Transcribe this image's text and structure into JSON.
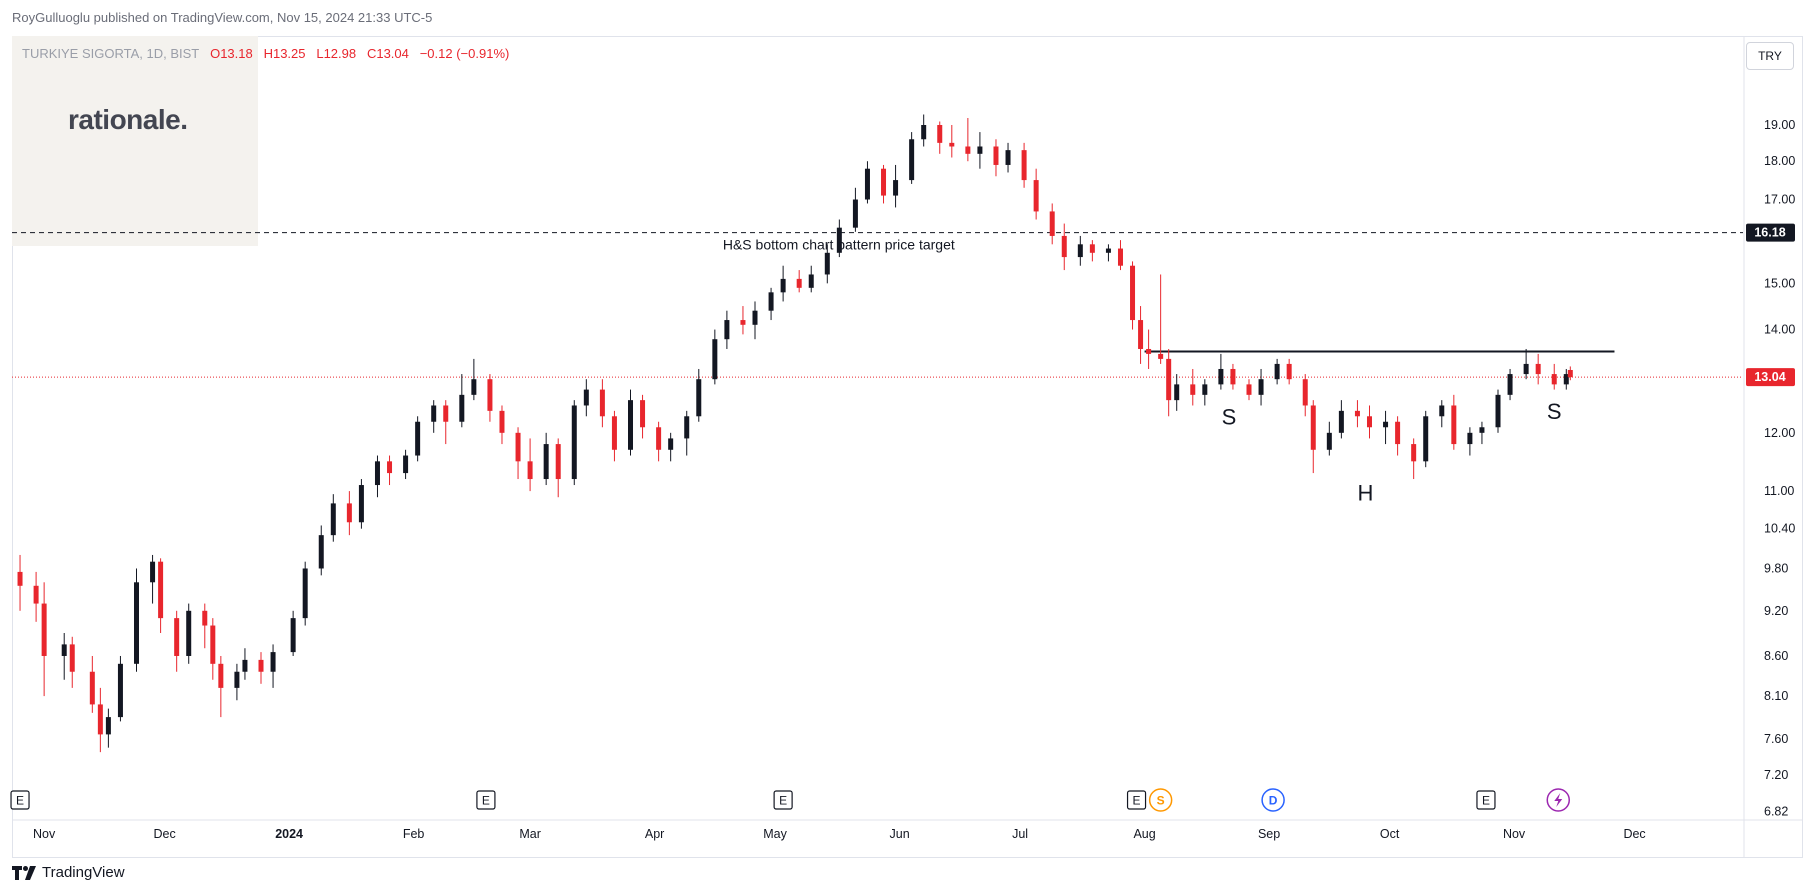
{
  "header": {
    "published": "RoyGulluoglu published on TradingView.com, Nov 15, 2024 21:33 UTC-5"
  },
  "legend": {
    "symbol": "TURKIYE SIGORTA, 1D, BIST",
    "open": "O13.18",
    "high": "H13.25",
    "low": "L12.98",
    "close": "C13.04",
    "change": "−0.12 (−0.91%)"
  },
  "watermark": "rationale.",
  "currency_button": "TRY",
  "footer": {
    "brand": "TradingView"
  },
  "colors": {
    "up": "#131722",
    "down": "#e8262d",
    "price_line": "#e8262d",
    "target_line": "#131722",
    "dividend": "#2962ff",
    "split": "#ff9800",
    "pulse": "#9c27b0"
  },
  "chart_data": {
    "type": "candlestick",
    "scale": "log",
    "y_ticks": [
      6.82,
      7.2,
      7.6,
      8.1,
      8.6,
      9.2,
      9.8,
      10.4,
      11.0,
      12.0,
      13.0,
      14.0,
      15.0,
      16.0,
      17.0,
      18.0,
      19.0
    ],
    "y_tick_labels": [
      "6.82",
      "7.20",
      "7.60",
      "8.10",
      "8.60",
      "9.20",
      "9.80",
      "10.40",
      "11.00",
      "12.00",
      "",
      "14.00",
      "15.00",
      "",
      "17.00",
      "18.00",
      "19.00"
    ],
    "x_labels": [
      {
        "label": "Nov",
        "date": "2023-11-01",
        "bold": false
      },
      {
        "label": "Dec",
        "date": "2023-12-01",
        "bold": false
      },
      {
        "label": "2024",
        "date": "2024-01-01",
        "bold": true
      },
      {
        "label": "Feb",
        "date": "2024-02-01",
        "bold": false
      },
      {
        "label": "Mar",
        "date": "2024-03-01",
        "bold": false
      },
      {
        "label": "Apr",
        "date": "2024-04-01",
        "bold": false
      },
      {
        "label": "May",
        "date": "2024-05-01",
        "bold": false
      },
      {
        "label": "Jun",
        "date": "2024-06-01",
        "bold": false
      },
      {
        "label": "Jul",
        "date": "2024-07-01",
        "bold": false
      },
      {
        "label": "Aug",
        "date": "2024-08-01",
        "bold": false
      },
      {
        "label": "Sep",
        "date": "2024-09-01",
        "bold": false
      },
      {
        "label": "Oct",
        "date": "2024-10-01",
        "bold": false
      },
      {
        "label": "Nov",
        "date": "2024-11-01",
        "bold": false
      },
      {
        "label": "Dec",
        "date": "2024-12-01",
        "bold": false
      }
    ],
    "last_price": {
      "value": 13.04,
      "label": "13.04"
    },
    "target_price": {
      "value": 16.18,
      "label": "16.18"
    },
    "target_text": "H&S bottom chart pattern price target",
    "neckline": {
      "value": 13.55,
      "from": "2024-08-01",
      "to": "2024-11-26"
    },
    "pattern_labels": [
      {
        "text": "S",
        "date": "2024-08-22",
        "value": 12.15
      },
      {
        "text": "H",
        "date": "2024-09-25",
        "value": 10.85
      },
      {
        "text": "S",
        "date": "2024-11-11",
        "value": 12.25
      }
    ],
    "events": [
      {
        "type": "E",
        "date": "2023-10-26"
      },
      {
        "type": "E",
        "date": "2024-02-19"
      },
      {
        "type": "E",
        "date": "2024-05-03"
      },
      {
        "type": "E",
        "date": "2024-07-30"
      },
      {
        "type": "S",
        "date": "2024-08-05"
      },
      {
        "type": "D",
        "date": "2024-09-02"
      },
      {
        "type": "E",
        "date": "2024-10-25"
      },
      {
        "type": "pulse",
        "date": "2024-11-12"
      }
    ],
    "series": [
      {
        "date": "2023-10-26",
        "open": 9.75,
        "high": 10.0,
        "low": 9.2,
        "close": 9.55
      },
      {
        "date": "2023-10-30",
        "open": 9.55,
        "high": 9.75,
        "low": 9.05,
        "close": 9.3
      },
      {
        "date": "2023-11-01",
        "open": 9.3,
        "high": 9.6,
        "low": 8.1,
        "close": 8.6
      },
      {
        "date": "2023-11-06",
        "open": 8.6,
        "high": 8.9,
        "low": 8.3,
        "close": 8.75
      },
      {
        "date": "2023-11-08",
        "open": 8.75,
        "high": 8.85,
        "low": 8.2,
        "close": 8.4
      },
      {
        "date": "2023-11-13",
        "open": 8.4,
        "high": 8.6,
        "low": 7.9,
        "close": 8.0
      },
      {
        "date": "2023-11-15",
        "open": 8.0,
        "high": 8.2,
        "low": 7.45,
        "close": 7.65
      },
      {
        "date": "2023-11-17",
        "open": 7.65,
        "high": 7.95,
        "low": 7.5,
        "close": 7.85
      },
      {
        "date": "2023-11-20",
        "open": 7.85,
        "high": 8.6,
        "low": 7.8,
        "close": 8.5
      },
      {
        "date": "2023-11-24",
        "open": 8.5,
        "high": 9.8,
        "low": 8.4,
        "close": 9.6
      },
      {
        "date": "2023-11-28",
        "open": 9.6,
        "high": 10.0,
        "low": 9.3,
        "close": 9.9
      },
      {
        "date": "2023-11-30",
        "open": 9.9,
        "high": 9.95,
        "low": 8.9,
        "close": 9.1
      },
      {
        "date": "2023-12-04",
        "open": 9.1,
        "high": 9.2,
        "low": 8.4,
        "close": 8.6
      },
      {
        "date": "2023-12-07",
        "open": 8.6,
        "high": 9.3,
        "low": 8.5,
        "close": 9.2
      },
      {
        "date": "2023-12-11",
        "open": 9.2,
        "high": 9.3,
        "low": 8.7,
        "close": 9.0
      },
      {
        "date": "2023-12-13",
        "open": 9.0,
        "high": 9.1,
        "low": 8.3,
        "close": 8.5
      },
      {
        "date": "2023-12-15",
        "open": 8.5,
        "high": 8.6,
        "low": 7.85,
        "close": 8.2
      },
      {
        "date": "2023-12-19",
        "open": 8.2,
        "high": 8.5,
        "low": 8.05,
        "close": 8.4
      },
      {
        "date": "2023-12-21",
        "open": 8.4,
        "high": 8.7,
        "low": 8.3,
        "close": 8.55
      },
      {
        "date": "2023-12-25",
        "open": 8.55,
        "high": 8.65,
        "low": 8.25,
        "close": 8.4
      },
      {
        "date": "2023-12-28",
        "open": 8.4,
        "high": 8.75,
        "low": 8.2,
        "close": 8.65
      },
      {
        "date": "2024-01-02",
        "open": 8.65,
        "high": 9.2,
        "low": 8.6,
        "close": 9.1
      },
      {
        "date": "2024-01-05",
        "open": 9.1,
        "high": 9.9,
        "low": 9.0,
        "close": 9.8
      },
      {
        "date": "2024-01-09",
        "open": 9.8,
        "high": 10.45,
        "low": 9.7,
        "close": 10.3
      },
      {
        "date": "2024-01-12",
        "open": 10.3,
        "high": 10.95,
        "low": 10.2,
        "close": 10.8
      },
      {
        "date": "2024-01-16",
        "open": 10.8,
        "high": 11.0,
        "low": 10.3,
        "close": 10.5
      },
      {
        "date": "2024-01-19",
        "open": 10.5,
        "high": 11.2,
        "low": 10.4,
        "close": 11.1
      },
      {
        "date": "2024-01-23",
        "open": 11.1,
        "high": 11.6,
        "low": 10.9,
        "close": 11.5
      },
      {
        "date": "2024-01-26",
        "open": 11.5,
        "high": 11.6,
        "low": 11.1,
        "close": 11.3
      },
      {
        "date": "2024-01-30",
        "open": 11.3,
        "high": 11.7,
        "low": 11.2,
        "close": 11.6
      },
      {
        "date": "2024-02-02",
        "open": 11.6,
        "high": 12.3,
        "low": 11.5,
        "close": 12.2
      },
      {
        "date": "2024-02-06",
        "open": 12.2,
        "high": 12.6,
        "low": 12.0,
        "close": 12.5
      },
      {
        "date": "2024-02-09",
        "open": 12.5,
        "high": 12.6,
        "low": 11.8,
        "close": 12.2
      },
      {
        "date": "2024-02-13",
        "open": 12.2,
        "high": 13.1,
        "low": 12.1,
        "close": 12.7
      },
      {
        "date": "2024-02-16",
        "open": 12.7,
        "high": 13.4,
        "low": 12.6,
        "close": 13.0
      },
      {
        "date": "2024-02-20",
        "open": 13.0,
        "high": 13.1,
        "low": 12.2,
        "close": 12.4
      },
      {
        "date": "2024-02-23",
        "open": 12.4,
        "high": 12.5,
        "low": 11.8,
        "close": 12.0
      },
      {
        "date": "2024-02-27",
        "open": 12.0,
        "high": 12.1,
        "low": 11.2,
        "close": 11.5
      },
      {
        "date": "2024-03-01",
        "open": 11.5,
        "high": 11.9,
        "low": 11.0,
        "close": 11.2
      },
      {
        "date": "2024-03-05",
        "open": 11.2,
        "high": 12.0,
        "low": 11.1,
        "close": 11.8
      },
      {
        "date": "2024-03-08",
        "open": 11.8,
        "high": 11.9,
        "low": 10.9,
        "close": 11.2
      },
      {
        "date": "2024-03-12",
        "open": 11.2,
        "high": 12.6,
        "low": 11.1,
        "close": 12.5
      },
      {
        "date": "2024-03-15",
        "open": 12.5,
        "high": 13.0,
        "low": 12.3,
        "close": 12.8
      },
      {
        "date": "2024-03-19",
        "open": 12.8,
        "high": 13.0,
        "low": 12.1,
        "close": 12.3
      },
      {
        "date": "2024-03-22",
        "open": 12.3,
        "high": 12.4,
        "low": 11.5,
        "close": 11.7
      },
      {
        "date": "2024-03-26",
        "open": 11.7,
        "high": 12.8,
        "low": 11.6,
        "close": 12.6
      },
      {
        "date": "2024-03-29",
        "open": 12.6,
        "high": 12.7,
        "low": 11.9,
        "close": 12.1
      },
      {
        "date": "2024-04-02",
        "open": 12.1,
        "high": 12.2,
        "low": 11.5,
        "close": 11.7
      },
      {
        "date": "2024-04-05",
        "open": 11.7,
        "high": 12.0,
        "low": 11.5,
        "close": 11.9
      },
      {
        "date": "2024-04-09",
        "open": 11.9,
        "high": 12.4,
        "low": 11.6,
        "close": 12.3
      },
      {
        "date": "2024-04-12",
        "open": 12.3,
        "high": 13.2,
        "low": 12.2,
        "close": 13.0
      },
      {
        "date": "2024-04-16",
        "open": 13.0,
        "high": 14.0,
        "low": 12.9,
        "close": 13.8
      },
      {
        "date": "2024-04-19",
        "open": 13.8,
        "high": 14.4,
        "low": 13.6,
        "close": 14.2
      },
      {
        "date": "2024-04-23",
        "open": 14.2,
        "high": 14.5,
        "low": 13.9,
        "close": 14.1
      },
      {
        "date": "2024-04-26",
        "open": 14.1,
        "high": 14.6,
        "low": 13.8,
        "close": 14.4
      },
      {
        "date": "2024-04-30",
        "open": 14.4,
        "high": 14.9,
        "low": 14.2,
        "close": 14.8
      },
      {
        "date": "2024-05-03",
        "open": 14.8,
        "high": 15.4,
        "low": 14.6,
        "close": 15.1
      },
      {
        "date": "2024-05-07",
        "open": 15.1,
        "high": 15.3,
        "low": 14.8,
        "close": 14.9
      },
      {
        "date": "2024-05-10",
        "open": 14.9,
        "high": 15.4,
        "low": 14.8,
        "close": 15.2
      },
      {
        "date": "2024-05-14",
        "open": 15.2,
        "high": 15.9,
        "low": 15.0,
        "close": 15.7
      },
      {
        "date": "2024-05-17",
        "open": 15.7,
        "high": 16.5,
        "low": 15.6,
        "close": 16.3
      },
      {
        "date": "2024-05-21",
        "open": 16.3,
        "high": 17.3,
        "low": 16.2,
        "close": 17.0
      },
      {
        "date": "2024-05-24",
        "open": 17.0,
        "high": 18.0,
        "low": 16.9,
        "close": 17.8
      },
      {
        "date": "2024-05-28",
        "open": 17.8,
        "high": 17.9,
        "low": 16.9,
        "close": 17.1
      },
      {
        "date": "2024-05-31",
        "open": 17.1,
        "high": 17.9,
        "low": 16.8,
        "close": 17.5
      },
      {
        "date": "2024-06-04",
        "open": 17.5,
        "high": 18.8,
        "low": 17.4,
        "close": 18.6
      },
      {
        "date": "2024-06-07",
        "open": 18.6,
        "high": 19.3,
        "low": 18.4,
        "close": 19.0
      },
      {
        "date": "2024-06-11",
        "open": 19.0,
        "high": 19.1,
        "low": 18.2,
        "close": 18.5
      },
      {
        "date": "2024-06-14",
        "open": 18.5,
        "high": 19.0,
        "low": 18.1,
        "close": 18.4
      },
      {
        "date": "2024-06-18",
        "open": 18.4,
        "high": 19.2,
        "low": 18.0,
        "close": 18.2
      },
      {
        "date": "2024-06-21",
        "open": 18.2,
        "high": 18.8,
        "low": 17.8,
        "close": 18.4
      },
      {
        "date": "2024-06-25",
        "open": 18.4,
        "high": 18.6,
        "low": 17.6,
        "close": 17.9
      },
      {
        "date": "2024-06-28",
        "open": 17.9,
        "high": 18.5,
        "low": 17.7,
        "close": 18.3
      },
      {
        "date": "2024-07-02",
        "open": 18.3,
        "high": 18.5,
        "low": 17.3,
        "close": 17.5
      },
      {
        "date": "2024-07-05",
        "open": 17.5,
        "high": 17.8,
        "low": 16.5,
        "close": 16.7
      },
      {
        "date": "2024-07-09",
        "open": 16.7,
        "high": 16.9,
        "low": 15.9,
        "close": 16.1
      },
      {
        "date": "2024-07-12",
        "open": 16.1,
        "high": 16.4,
        "low": 15.3,
        "close": 15.6
      },
      {
        "date": "2024-07-16",
        "open": 15.6,
        "high": 16.1,
        "low": 15.4,
        "close": 15.9
      },
      {
        "date": "2024-07-19",
        "open": 15.9,
        "high": 16.0,
        "low": 15.5,
        "close": 15.7
      },
      {
        "date": "2024-07-23",
        "open": 15.7,
        "high": 15.9,
        "low": 15.5,
        "close": 15.8
      },
      {
        "date": "2024-07-26",
        "open": 15.8,
        "high": 16.0,
        "low": 15.3,
        "close": 15.4
      },
      {
        "date": "2024-07-29",
        "open": 15.4,
        "high": 15.5,
        "low": 14.0,
        "close": 14.2
      },
      {
        "date": "2024-07-31",
        "open": 14.2,
        "high": 14.5,
        "low": 13.3,
        "close": 13.6
      },
      {
        "date": "2024-08-02",
        "open": 13.6,
        "high": 14.0,
        "low": 13.2,
        "close": 13.5
      },
      {
        "date": "2024-08-05",
        "open": 13.5,
        "high": 15.2,
        "low": 13.3,
        "close": 13.4
      },
      {
        "date": "2024-08-07",
        "open": 13.4,
        "high": 13.6,
        "low": 12.3,
        "close": 12.6
      },
      {
        "date": "2024-08-09",
        "open": 12.6,
        "high": 13.1,
        "low": 12.4,
        "close": 12.9
      },
      {
        "date": "2024-08-13",
        "open": 12.9,
        "high": 13.2,
        "low": 12.5,
        "close": 12.7
      },
      {
        "date": "2024-08-16",
        "open": 12.7,
        "high": 13.0,
        "low": 12.5,
        "close": 12.9
      },
      {
        "date": "2024-08-20",
        "open": 12.9,
        "high": 13.5,
        "low": 12.8,
        "close": 13.2
      },
      {
        "date": "2024-08-23",
        "open": 13.2,
        "high": 13.3,
        "low": 12.8,
        "close": 12.9
      },
      {
        "date": "2024-08-27",
        "open": 12.9,
        "high": 13.0,
        "low": 12.6,
        "close": 12.7
      },
      {
        "date": "2024-08-30",
        "open": 12.7,
        "high": 13.2,
        "low": 12.5,
        "close": 13.0
      },
      {
        "date": "2024-09-03",
        "open": 13.0,
        "high": 13.4,
        "low": 12.9,
        "close": 13.3
      },
      {
        "date": "2024-09-06",
        "open": 13.3,
        "high": 13.4,
        "low": 12.9,
        "close": 13.0
      },
      {
        "date": "2024-09-10",
        "open": 13.0,
        "high": 13.1,
        "low": 12.3,
        "close": 12.5
      },
      {
        "date": "2024-09-12",
        "open": 12.5,
        "high": 12.6,
        "low": 11.3,
        "close": 11.7
      },
      {
        "date": "2024-09-16",
        "open": 11.7,
        "high": 12.2,
        "low": 11.6,
        "close": 12.0
      },
      {
        "date": "2024-09-19",
        "open": 12.0,
        "high": 12.6,
        "low": 11.9,
        "close": 12.4
      },
      {
        "date": "2024-09-23",
        "open": 12.4,
        "high": 12.6,
        "low": 12.1,
        "close": 12.3
      },
      {
        "date": "2024-09-26",
        "open": 12.3,
        "high": 12.5,
        "low": 11.9,
        "close": 12.1
      },
      {
        "date": "2024-09-30",
        "open": 12.1,
        "high": 12.4,
        "low": 11.8,
        "close": 12.2
      },
      {
        "date": "2024-10-03",
        "open": 12.2,
        "high": 12.3,
        "low": 11.6,
        "close": 11.8
      },
      {
        "date": "2024-10-07",
        "open": 11.8,
        "high": 11.9,
        "low": 11.2,
        "close": 11.5
      },
      {
        "date": "2024-10-10",
        "open": 11.5,
        "high": 12.4,
        "low": 11.4,
        "close": 12.3
      },
      {
        "date": "2024-10-14",
        "open": 12.3,
        "high": 12.6,
        "low": 12.1,
        "close": 12.5
      },
      {
        "date": "2024-10-17",
        "open": 12.5,
        "high": 12.7,
        "low": 11.7,
        "close": 11.8
      },
      {
        "date": "2024-10-21",
        "open": 11.8,
        "high": 12.1,
        "low": 11.6,
        "close": 12.0
      },
      {
        "date": "2024-10-24",
        "open": 12.0,
        "high": 12.2,
        "low": 11.8,
        "close": 12.1
      },
      {
        "date": "2024-10-28",
        "open": 12.1,
        "high": 12.8,
        "low": 12.0,
        "close": 12.7
      },
      {
        "date": "2024-10-31",
        "open": 12.7,
        "high": 13.2,
        "low": 12.6,
        "close": 13.1
      },
      {
        "date": "2024-11-04",
        "open": 13.1,
        "high": 13.6,
        "low": 13.0,
        "close": 13.3
      },
      {
        "date": "2024-11-07",
        "open": 13.3,
        "high": 13.5,
        "low": 12.9,
        "close": 13.1
      },
      {
        "date": "2024-11-11",
        "open": 13.1,
        "high": 13.3,
        "low": 12.8,
        "close": 12.9
      },
      {
        "date": "2024-11-14",
        "open": 12.9,
        "high": 13.2,
        "low": 12.8,
        "close": 13.1
      },
      {
        "date": "2024-11-15",
        "open": 13.18,
        "high": 13.25,
        "low": 12.98,
        "close": 13.04
      }
    ]
  }
}
